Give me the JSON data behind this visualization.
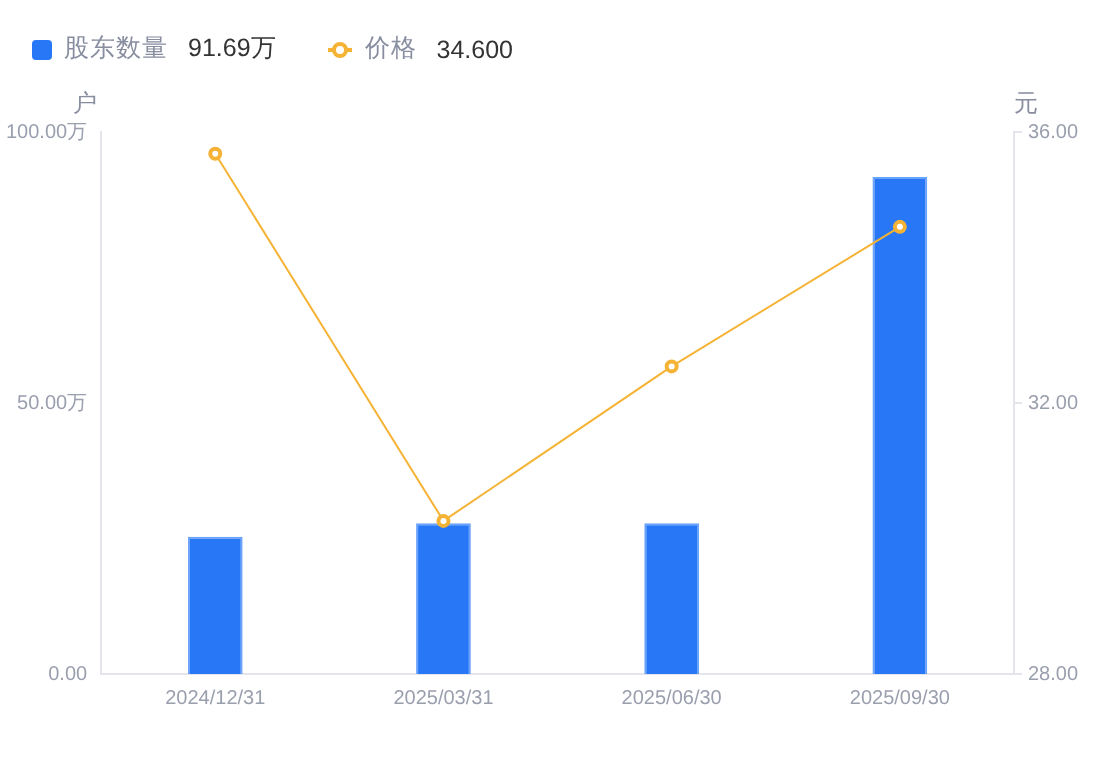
{
  "chart_data": {
    "type": "bar",
    "ylabel": "户",
    "y2label": "元",
    "categories": [
      "2024/12/31",
      "2025/03/31",
      "2025/06/30",
      "2025/09/30"
    ],
    "series": [
      {
        "name": "股东数量",
        "color": "#2777f7",
        "values": [
          25.3,
          27.8,
          27.8,
          91.69
        ]
      },
      {
        "name": "价格",
        "type": "line",
        "axis": "y2",
        "color": "#f5b335",
        "marker": "circle",
        "values": [
          35.68,
          30.26,
          32.54,
          34.6
        ]
      }
    ],
    "ylim": [
      0,
      100
    ],
    "yticks": [
      {
        "value": 0,
        "label": "0.00"
      },
      {
        "value": 50,
        "label": "50.00万"
      },
      {
        "value": 100,
        "label": "100.00万"
      }
    ],
    "y2lim": [
      28,
      36
    ],
    "y2ticks": [
      {
        "value": 28,
        "label": "28.00"
      },
      {
        "value": 32,
        "label": "32.00"
      },
      {
        "value": 36,
        "label": "36.00"
      }
    ],
    "annotations": [
      "91.69万",
      "34.600"
    ],
    "grid": false,
    "legend": "top left"
  }
}
